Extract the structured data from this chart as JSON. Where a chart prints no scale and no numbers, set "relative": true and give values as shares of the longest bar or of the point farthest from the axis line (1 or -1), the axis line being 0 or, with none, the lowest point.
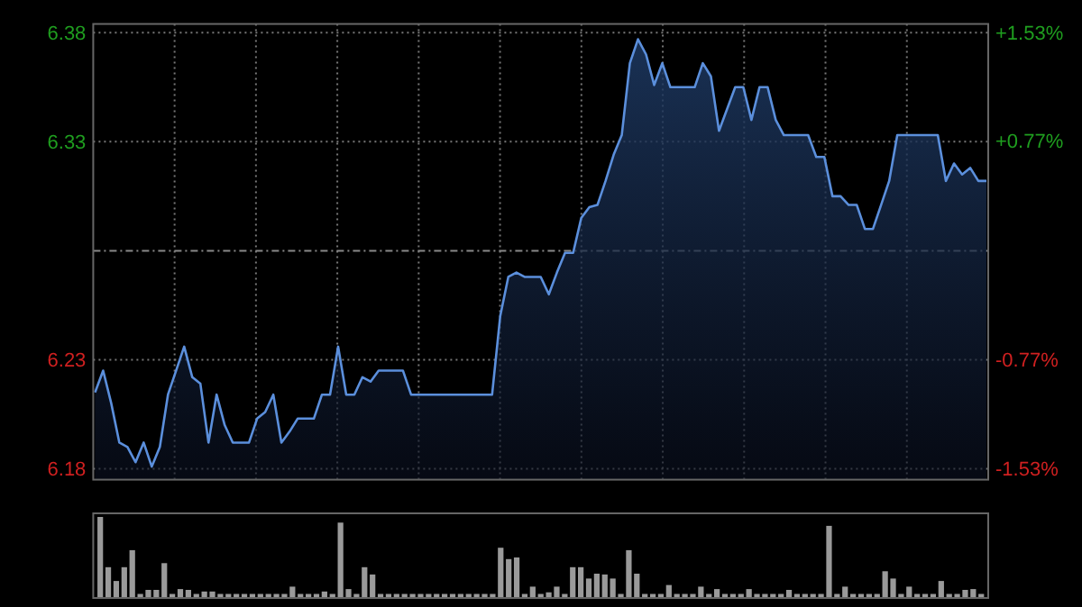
{
  "chart_data": [
    {
      "type": "area",
      "categories": [
        null,
        null,
        null,
        null,
        null,
        null,
        null,
        null,
        null,
        null,
        null,
        null,
        null,
        null,
        null,
        null,
        null,
        null,
        null,
        null,
        null,
        null,
        null,
        null,
        null,
        null,
        null,
        null,
        null,
        null,
        null,
        null,
        null,
        null,
        null,
        null,
        null,
        null,
        null,
        null,
        null,
        null,
        null,
        null,
        null,
        null,
        null,
        null,
        null,
        null,
        null,
        null,
        null,
        null,
        null,
        null,
        null,
        null,
        null,
        null,
        null,
        null,
        null,
        null,
        null,
        null,
        null,
        null,
        null,
        null,
        null,
        null,
        null,
        null,
        null,
        null,
        null,
        null,
        null,
        null,
        null,
        null,
        null,
        null,
        null,
        null,
        null,
        null,
        null,
        null,
        null,
        null,
        null,
        null,
        null,
        null,
        null,
        null,
        null,
        null,
        null,
        null,
        null,
        null,
        null,
        null,
        null,
        null,
        null,
        null,
        null
      ],
      "series": [
        {
          "color": "#5b8fdc",
          "values": [
            6.215,
            6.225,
            6.21,
            6.192,
            6.19,
            6.183,
            6.192,
            6.181,
            6.19,
            6.214,
            6.225,
            6.236,
            6.222,
            6.219,
            6.192,
            6.214,
            6.2,
            6.192,
            6.192,
            6.192,
            6.203,
            6.206,
            6.214,
            6.192,
            6.197,
            6.203,
            6.203,
            6.203,
            6.214,
            6.214,
            6.236,
            6.214,
            6.214,
            6.222,
            6.22,
            6.225,
            6.225,
            6.225,
            6.225,
            6.214,
            6.214,
            6.214,
            6.214,
            6.214,
            6.214,
            6.214,
            6.214,
            6.214,
            6.214,
            6.214,
            6.25,
            6.268,
            6.27,
            6.268,
            6.268,
            6.268,
            6.26,
            6.27,
            6.279,
            6.279,
            6.295,
            6.3,
            6.301,
            6.312,
            6.324,
            6.333,
            6.366,
            6.377,
            6.37,
            6.356,
            6.366,
            6.355,
            6.355,
            6.355,
            6.355,
            6.366,
            6.36,
            6.335,
            6.345,
            6.355,
            6.355,
            6.34,
            6.355,
            6.355,
            6.34,
            6.333,
            6.333,
            6.333,
            6.333,
            6.323,
            6.323,
            6.305,
            6.305,
            6.301,
            6.301,
            6.29,
            6.29,
            6.301,
            6.312,
            6.333,
            6.333,
            6.333,
            6.333,
            6.333,
            6.333,
            6.312,
            6.32,
            6.315,
            6.318,
            6.312,
            6.312
          ]
        }
      ],
      "ylim": [
        6.175,
        6.384
      ],
      "yticks": [
        6.18,
        6.23,
        6.33,
        6.38
      ],
      "y2lim": [
        -1.61,
        1.59
      ],
      "y2ticks": [
        {
          "value": -1.53,
          "label": "-1.53%"
        },
        {
          "value": -0.77,
          "label": "-0.77%"
        },
        {
          "value": 0.77,
          "label": "+0.77%"
        },
        {
          "value": 1.53,
          "label": "+1.53%"
        }
      ],
      "ref_lines": [
        {
          "axis": "y",
          "value": 6.28
        }
      ],
      "grid": true
    },
    {
      "type": "bar",
      "relative": true,
      "color": "#9a9a9a",
      "categories": [
        null,
        null,
        null,
        null,
        null,
        null,
        null,
        null,
        null,
        null,
        null,
        null,
        null,
        null,
        null,
        null,
        null,
        null,
        null,
        null,
        null,
        null,
        null,
        null,
        null,
        null,
        null,
        null,
        null,
        null,
        null,
        null,
        null,
        null,
        null,
        null,
        null,
        null,
        null,
        null,
        null,
        null,
        null,
        null,
        null,
        null,
        null,
        null,
        null,
        null,
        null,
        null,
        null,
        null,
        null,
        null,
        null,
        null,
        null,
        null,
        null,
        null,
        null,
        null,
        null,
        null,
        null,
        null,
        null,
        null,
        null,
        null,
        null,
        null,
        null,
        null,
        null,
        null,
        null,
        null,
        null,
        null,
        null,
        null,
        null,
        null,
        null,
        null,
        null,
        null,
        null,
        null,
        null,
        null,
        null,
        null,
        null,
        null,
        null,
        null,
        null,
        null,
        null,
        null,
        null,
        null,
        null,
        null,
        null,
        null,
        null
      ],
      "values": [
        1.0,
        0.38,
        0.21,
        0.38,
        0.59,
        0.05,
        0.1,
        0.1,
        0.43,
        0.05,
        0.11,
        0.1,
        0.05,
        0.08,
        0.08,
        0.05,
        0.05,
        0.05,
        0.05,
        0.05,
        0.05,
        0.05,
        0.05,
        0.05,
        0.14,
        0.05,
        0.05,
        0.05,
        0.08,
        0.05,
        0.93,
        0.11,
        0.05,
        0.38,
        0.29,
        0.05,
        0.05,
        0.05,
        0.05,
        0.05,
        0.05,
        0.05,
        0.05,
        0.05,
        0.05,
        0.05,
        0.05,
        0.05,
        0.05,
        0.05,
        0.62,
        0.48,
        0.5,
        0.05,
        0.14,
        0.05,
        0.07,
        0.14,
        0.05,
        0.38,
        0.38,
        0.24,
        0.3,
        0.29,
        0.24,
        0.05,
        0.59,
        0.3,
        0.05,
        0.05,
        0.05,
        0.16,
        0.05,
        0.05,
        0.05,
        0.14,
        0.05,
        0.11,
        0.05,
        0.05,
        0.05,
        0.11,
        0.05,
        0.05,
        0.05,
        0.05,
        0.1,
        0.05,
        0.05,
        0.05,
        0.05,
        0.89,
        0.05,
        0.14,
        0.05,
        0.05,
        0.05,
        0.05,
        0.33,
        0.24,
        0.05,
        0.14,
        0.05,
        0.05,
        0.05,
        0.21,
        0.05,
        0.05,
        0.1,
        0.11,
        0.05
      ]
    }
  ]
}
